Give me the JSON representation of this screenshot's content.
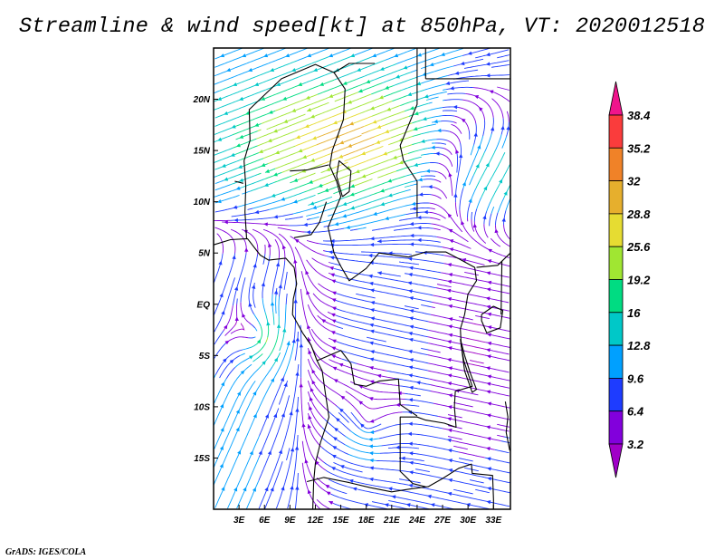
{
  "title": "Streamline & wind speed[kt] at 850hPa, VT: 2020012518",
  "credit": "GrADS: IGES/COLA",
  "chart_data": {
    "type": "streamline",
    "title": "Streamline & wind speed[kt] at 850hPa, VT: 2020012518",
    "units": "kt",
    "level": "850hPa",
    "valid_time": "2020012518",
    "lon_range": [
      0,
      35
    ],
    "lat_range": [
      -20,
      25
    ],
    "lat_ticks": [
      {
        "value": 20,
        "label": "20N"
      },
      {
        "value": 15,
        "label": "15N"
      },
      {
        "value": 10,
        "label": "10N"
      },
      {
        "value": 5,
        "label": "5N"
      },
      {
        "value": 0,
        "label": "EQ"
      },
      {
        "value": -5,
        "label": "5S"
      },
      {
        "value": -10,
        "label": "10S"
      },
      {
        "value": -15,
        "label": "15S"
      }
    ],
    "lon_ticks": [
      {
        "value": 3,
        "label": "3E"
      },
      {
        "value": 6,
        "label": "6E"
      },
      {
        "value": 9,
        "label": "9E"
      },
      {
        "value": 12,
        "label": "12E"
      },
      {
        "value": 15,
        "label": "15E"
      },
      {
        "value": 18,
        "label": "18E"
      },
      {
        "value": 21,
        "label": "21E"
      },
      {
        "value": 24,
        "label": "24E"
      },
      {
        "value": 27,
        "label": "27E"
      },
      {
        "value": 30,
        "label": "30E"
      },
      {
        "value": 33,
        "label": "33E"
      }
    ],
    "colorbar": {
      "labels": [
        "38.4",
        "35.2",
        "32",
        "28.8",
        "25.6",
        "19.2",
        "16",
        "12.8",
        "9.6",
        "6.4",
        "3.2"
      ],
      "colors": [
        "#f0148c",
        "#fa3c3c",
        "#f08228",
        "#e6af2d",
        "#e6dc32",
        "#a0e632",
        "#00dc82",
        "#00c8c8",
        "#00a0ff",
        "#1e3cff",
        "#8200dc",
        "#a000c8"
      ],
      "thresholds": [
        38.4,
        35.2,
        32,
        28.8,
        25.6,
        19.2,
        16,
        12.8,
        9.6,
        6.4,
        3.2
      ]
    }
  }
}
